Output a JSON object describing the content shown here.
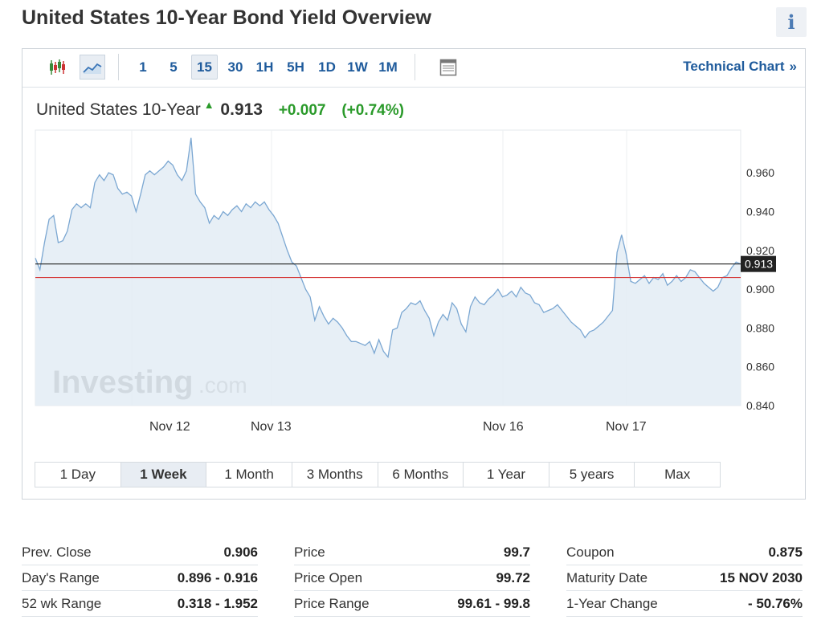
{
  "page": {
    "title": "United States 10-Year Bond Yield Overview",
    "info_icon": "i"
  },
  "toolbar": {
    "chart_icons": [
      "candlestick-icon",
      "line-chart-icon"
    ],
    "intervals": [
      "1",
      "5",
      "15",
      "30",
      "1H",
      "5H",
      "1D",
      "1W",
      "1M"
    ],
    "active_interval": "15",
    "settings_icon": "table-icon",
    "tech_link": "Technical Chart",
    "tech_link_arrow": "»"
  },
  "quote": {
    "name": "United States 10-Year",
    "arrow": "▲",
    "price": "0.913",
    "change": "+0.007",
    "change_pct": "(+0.74%)"
  },
  "colors": {
    "up": "#2a9a2a",
    "link": "#1f5b9c",
    "line": "#7ba7d2",
    "area": "#e3ecf4",
    "prev_close_line": "#d63b3b"
  },
  "chart_data": {
    "type": "area",
    "x_labels": [
      "Nov 12",
      "Nov 13",
      "Nov 16",
      "Nov 17"
    ],
    "y_ticks": [
      "0.960",
      "0.940",
      "0.920",
      "0.900",
      "0.880",
      "0.860",
      "0.840"
    ],
    "ylim": [
      0.84,
      0.982
    ],
    "last_price_label": "0.913",
    "last_price": 0.913,
    "prev_close": 0.906,
    "watermark": "Investing.com",
    "values": [
      0.916,
      0.91,
      0.924,
      0.936,
      0.938,
      0.924,
      0.925,
      0.93,
      0.941,
      0.944,
      0.942,
      0.944,
      0.942,
      0.955,
      0.959,
      0.956,
      0.96,
      0.959,
      0.952,
      0.949,
      0.95,
      0.948,
      0.94,
      0.949,
      0.959,
      0.961,
      0.959,
      0.961,
      0.963,
      0.966,
      0.964,
      0.959,
      0.956,
      0.961,
      0.978,
      0.949,
      0.945,
      0.942,
      0.934,
      0.938,
      0.936,
      0.94,
      0.938,
      0.941,
      0.943,
      0.94,
      0.944,
      0.942,
      0.945,
      0.943,
      0.945,
      0.941,
      0.938,
      0.934,
      0.927,
      0.92,
      0.914,
      0.912,
      0.906,
      0.9,
      0.896,
      0.884,
      0.891,
      0.886,
      0.882,
      0.885,
      0.883,
      0.88,
      0.876,
      0.873,
      0.873,
      0.872,
      0.871,
      0.873,
      0.867,
      0.874,
      0.868,
      0.865,
      0.879,
      0.88,
      0.888,
      0.89,
      0.893,
      0.892,
      0.894,
      0.889,
      0.885,
      0.876,
      0.883,
      0.887,
      0.884,
      0.893,
      0.89,
      0.882,
      0.878,
      0.891,
      0.896,
      0.893,
      0.892,
      0.895,
      0.897,
      0.9,
      0.896,
      0.897,
      0.899,
      0.896,
      0.901,
      0.898,
      0.897,
      0.893,
      0.892,
      0.888,
      0.889,
      0.89,
      0.892,
      0.889,
      0.886,
      0.883,
      0.881,
      0.879,
      0.875,
      0.878,
      0.879,
      0.881,
      0.883,
      0.886,
      0.889,
      0.919,
      0.928,
      0.918,
      0.904,
      0.903,
      0.905,
      0.907,
      0.903,
      0.906,
      0.905,
      0.908,
      0.902,
      0.904,
      0.907,
      0.904,
      0.906,
      0.91,
      0.909,
      0.906,
      0.903,
      0.901,
      0.899,
      0.901,
      0.906,
      0.907,
      0.911,
      0.914,
      0.913
    ]
  },
  "range_tabs": [
    "1 Day",
    "1 Week",
    "1 Month",
    "3 Months",
    "6 Months",
    "1 Year",
    "5 years",
    "Max"
  ],
  "active_range": "1 Week",
  "stats": [
    [
      {
        "label": "Prev. Close",
        "value": "0.906"
      },
      {
        "label": "Day's Range",
        "value": "0.896 - 0.916"
      },
      {
        "label": "52 wk Range",
        "value": "0.318 - 1.952"
      }
    ],
    [
      {
        "label": "Price",
        "value": "99.7"
      },
      {
        "label": "Price Open",
        "value": "99.72"
      },
      {
        "label": "Price Range",
        "value": "99.61 - 99.8"
      }
    ],
    [
      {
        "label": "Coupon",
        "value": "0.875"
      },
      {
        "label": "Maturity Date",
        "value": "15 NOV 2030"
      },
      {
        "label": "1-Year Change",
        "value": "- 50.76%"
      }
    ]
  ]
}
